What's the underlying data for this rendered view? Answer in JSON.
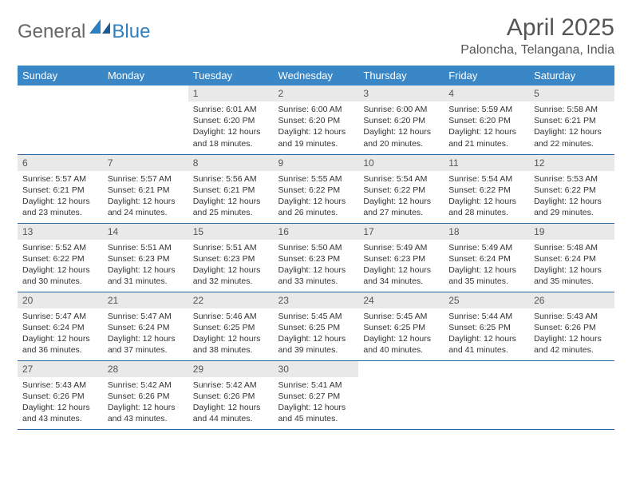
{
  "logo": {
    "general": "General",
    "blue": "Blue"
  },
  "title": "April 2025",
  "location": "Paloncha, Telangana, India",
  "header_bg": "#3a87c7",
  "week_border": "#2966a3",
  "daynum_bg": "#e9e9e9",
  "days": [
    "Sunday",
    "Monday",
    "Tuesday",
    "Wednesday",
    "Thursday",
    "Friday",
    "Saturday"
  ],
  "cells": [
    [
      {
        "empty": true
      },
      {
        "empty": true
      },
      {
        "n": "1",
        "sr": "6:01 AM",
        "ss": "6:20 PM",
        "dl": "12 hours and 18 minutes."
      },
      {
        "n": "2",
        "sr": "6:00 AM",
        "ss": "6:20 PM",
        "dl": "12 hours and 19 minutes."
      },
      {
        "n": "3",
        "sr": "6:00 AM",
        "ss": "6:20 PM",
        "dl": "12 hours and 20 minutes."
      },
      {
        "n": "4",
        "sr": "5:59 AM",
        "ss": "6:20 PM",
        "dl": "12 hours and 21 minutes."
      },
      {
        "n": "5",
        "sr": "5:58 AM",
        "ss": "6:21 PM",
        "dl": "12 hours and 22 minutes."
      }
    ],
    [
      {
        "n": "6",
        "sr": "5:57 AM",
        "ss": "6:21 PM",
        "dl": "12 hours and 23 minutes."
      },
      {
        "n": "7",
        "sr": "5:57 AM",
        "ss": "6:21 PM",
        "dl": "12 hours and 24 minutes."
      },
      {
        "n": "8",
        "sr": "5:56 AM",
        "ss": "6:21 PM",
        "dl": "12 hours and 25 minutes."
      },
      {
        "n": "9",
        "sr": "5:55 AM",
        "ss": "6:22 PM",
        "dl": "12 hours and 26 minutes."
      },
      {
        "n": "10",
        "sr": "5:54 AM",
        "ss": "6:22 PM",
        "dl": "12 hours and 27 minutes."
      },
      {
        "n": "11",
        "sr": "5:54 AM",
        "ss": "6:22 PM",
        "dl": "12 hours and 28 minutes."
      },
      {
        "n": "12",
        "sr": "5:53 AM",
        "ss": "6:22 PM",
        "dl": "12 hours and 29 minutes."
      }
    ],
    [
      {
        "n": "13",
        "sr": "5:52 AM",
        "ss": "6:22 PM",
        "dl": "12 hours and 30 minutes."
      },
      {
        "n": "14",
        "sr": "5:51 AM",
        "ss": "6:23 PM",
        "dl": "12 hours and 31 minutes."
      },
      {
        "n": "15",
        "sr": "5:51 AM",
        "ss": "6:23 PM",
        "dl": "12 hours and 32 minutes."
      },
      {
        "n": "16",
        "sr": "5:50 AM",
        "ss": "6:23 PM",
        "dl": "12 hours and 33 minutes."
      },
      {
        "n": "17",
        "sr": "5:49 AM",
        "ss": "6:23 PM",
        "dl": "12 hours and 34 minutes."
      },
      {
        "n": "18",
        "sr": "5:49 AM",
        "ss": "6:24 PM",
        "dl": "12 hours and 35 minutes."
      },
      {
        "n": "19",
        "sr": "5:48 AM",
        "ss": "6:24 PM",
        "dl": "12 hours and 35 minutes."
      }
    ],
    [
      {
        "n": "20",
        "sr": "5:47 AM",
        "ss": "6:24 PM",
        "dl": "12 hours and 36 minutes."
      },
      {
        "n": "21",
        "sr": "5:47 AM",
        "ss": "6:24 PM",
        "dl": "12 hours and 37 minutes."
      },
      {
        "n": "22",
        "sr": "5:46 AM",
        "ss": "6:25 PM",
        "dl": "12 hours and 38 minutes."
      },
      {
        "n": "23",
        "sr": "5:45 AM",
        "ss": "6:25 PM",
        "dl": "12 hours and 39 minutes."
      },
      {
        "n": "24",
        "sr": "5:45 AM",
        "ss": "6:25 PM",
        "dl": "12 hours and 40 minutes."
      },
      {
        "n": "25",
        "sr": "5:44 AM",
        "ss": "6:25 PM",
        "dl": "12 hours and 41 minutes."
      },
      {
        "n": "26",
        "sr": "5:43 AM",
        "ss": "6:26 PM",
        "dl": "12 hours and 42 minutes."
      }
    ],
    [
      {
        "n": "27",
        "sr": "5:43 AM",
        "ss": "6:26 PM",
        "dl": "12 hours and 43 minutes."
      },
      {
        "n": "28",
        "sr": "5:42 AM",
        "ss": "6:26 PM",
        "dl": "12 hours and 43 minutes."
      },
      {
        "n": "29",
        "sr": "5:42 AM",
        "ss": "6:26 PM",
        "dl": "12 hours and 44 minutes."
      },
      {
        "n": "30",
        "sr": "5:41 AM",
        "ss": "6:27 PM",
        "dl": "12 hours and 45 minutes."
      },
      {
        "empty": true
      },
      {
        "empty": true
      },
      {
        "empty": true
      }
    ]
  ],
  "labels": {
    "sunrise": "Sunrise:",
    "sunset": "Sunset:",
    "daylight": "Daylight:"
  }
}
